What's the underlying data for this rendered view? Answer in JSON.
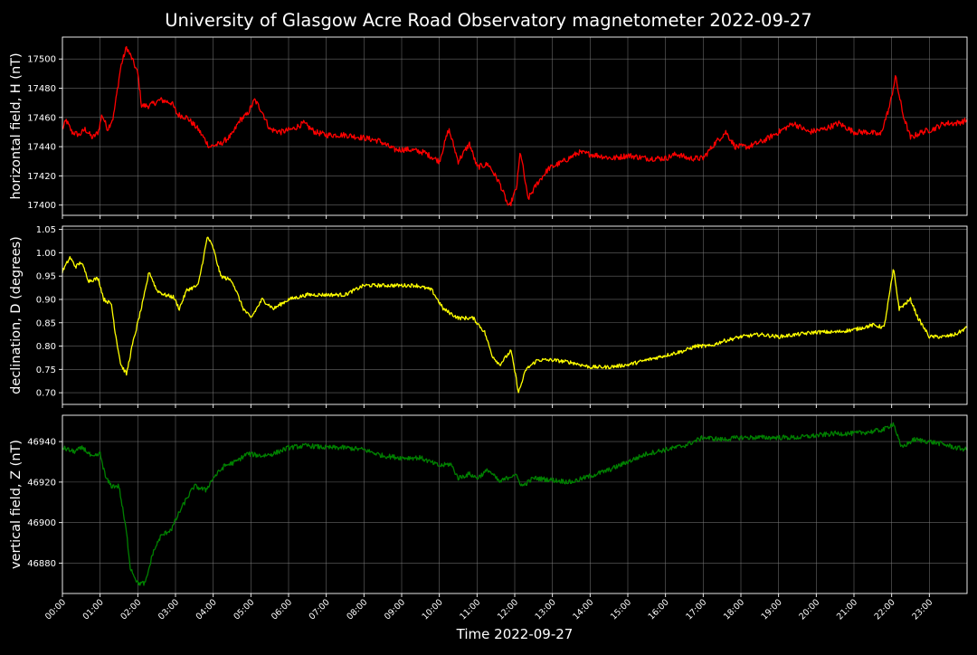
{
  "title": "University of Glasgow Acre Road Observatory magnetometer 2022-09-27",
  "xlabel": "Time 2022-09-27",
  "colors": {
    "background": "#000000",
    "axes": "#ffffff",
    "grid": "#808080"
  },
  "chart_data": [
    {
      "type": "line",
      "ylabel": "horizontal field, H (nT)",
      "color": "#ff0000",
      "xlim": [
        0,
        24
      ],
      "ylim": [
        17393,
        17515
      ],
      "yticks": [
        17400,
        17420,
        17440,
        17460,
        17480,
        17500
      ],
      "xticks": [
        "00:00",
        "01:00",
        "02:00",
        "03:00",
        "04:00",
        "05:00",
        "06:00",
        "07:00",
        "08:00",
        "09:00",
        "10:00",
        "11:00",
        "12:00",
        "13:00",
        "14:00",
        "15:00",
        "16:00",
        "17:00",
        "18:00",
        "19:00",
        "20:00",
        "21:00",
        "22:00",
        "23:00"
      ],
      "grid": true,
      "noise": 2,
      "series": [
        {
          "points": [
            [
              0,
              17452
            ],
            [
              0.1,
              17458
            ],
            [
              0.25,
              17450
            ],
            [
              0.45,
              17448
            ],
            [
              0.6,
              17452
            ],
            [
              0.8,
              17446
            ],
            [
              0.95,
              17450
            ],
            [
              1.05,
              17462
            ],
            [
              1.2,
              17452
            ],
            [
              1.35,
              17460
            ],
            [
              1.55,
              17495
            ],
            [
              1.7,
              17508
            ],
            [
              1.85,
              17500
            ],
            [
              2.0,
              17490
            ],
            [
              2.1,
              17468
            ],
            [
              2.3,
              17468
            ],
            [
              2.6,
              17472
            ],
            [
              2.9,
              17470
            ],
            [
              3.05,
              17462
            ],
            [
              3.3,
              17460
            ],
            [
              3.6,
              17452
            ],
            [
              3.9,
              17440
            ],
            [
              4.2,
              17442
            ],
            [
              4.5,
              17448
            ],
            [
              4.7,
              17458
            ],
            [
              4.9,
              17462
            ],
            [
              5.1,
              17472
            ],
            [
              5.3,
              17464
            ],
            [
              5.5,
              17452
            ],
            [
              5.8,
              17450
            ],
            [
              6.1,
              17452
            ],
            [
              6.4,
              17456
            ],
            [
              6.7,
              17450
            ],
            [
              7.0,
              17448
            ],
            [
              7.5,
              17448
            ],
            [
              8.0,
              17446
            ],
            [
              8.4,
              17444
            ],
            [
              8.8,
              17438
            ],
            [
              9.2,
              17438
            ],
            [
              9.6,
              17436
            ],
            [
              10.0,
              17430
            ],
            [
              10.25,
              17452
            ],
            [
              10.5,
              17430
            ],
            [
              10.8,
              17442
            ],
            [
              11.0,
              17426
            ],
            [
              11.3,
              17428
            ],
            [
              11.6,
              17415
            ],
            [
              11.85,
              17398
            ],
            [
              12.05,
              17412
            ],
            [
              12.15,
              17437
            ],
            [
              12.35,
              17404
            ],
            [
              12.6,
              17415
            ],
            [
              12.9,
              17425
            ],
            [
              13.3,
              17430
            ],
            [
              13.7,
              17436
            ],
            [
              14.2,
              17434
            ],
            [
              14.6,
              17432
            ],
            [
              15.0,
              17434
            ],
            [
              15.5,
              17432
            ],
            [
              16.0,
              17432
            ],
            [
              16.3,
              17435
            ],
            [
              16.6,
              17432
            ],
            [
              17.0,
              17432
            ],
            [
              17.3,
              17442
            ],
            [
              17.6,
              17450
            ],
            [
              17.85,
              17440
            ],
            [
              18.2,
              17440
            ],
            [
              18.6,
              17444
            ],
            [
              19.0,
              17450
            ],
            [
              19.4,
              17456
            ],
            [
              19.8,
              17450
            ],
            [
              20.2,
              17452
            ],
            [
              20.6,
              17456
            ],
            [
              21.0,
              17450
            ],
            [
              21.4,
              17450
            ],
            [
              21.7,
              17448
            ],
            [
              21.95,
              17468
            ],
            [
              22.1,
              17488
            ],
            [
              22.3,
              17462
            ],
            [
              22.5,
              17446
            ],
            [
              22.8,
              17450
            ],
            [
              23.1,
              17452
            ],
            [
              23.4,
              17456
            ],
            [
              23.7,
              17456
            ],
            [
              24.0,
              17458
            ]
          ]
        }
      ]
    },
    {
      "type": "line",
      "ylabel": "declination, D (degrees)",
      "color": "#ffff00",
      "xlim": [
        0,
        24
      ],
      "ylim": [
        0.675,
        1.057
      ],
      "yticks": [
        0.7,
        0.75,
        0.8,
        0.85,
        0.9,
        0.95,
        1.0,
        1.05
      ],
      "xticks": [
        "00:00",
        "01:00",
        "02:00",
        "03:00",
        "04:00",
        "05:00",
        "06:00",
        "07:00",
        "08:00",
        "09:00",
        "10:00",
        "11:00",
        "12:00",
        "13:00",
        "14:00",
        "15:00",
        "16:00",
        "17:00",
        "18:00",
        "19:00",
        "20:00",
        "21:00",
        "22:00",
        "23:00"
      ],
      "grid": true,
      "noise": 0.004,
      "series": [
        {
          "points": [
            [
              0,
              0.96
            ],
            [
              0.2,
              0.99
            ],
            [
              0.35,
              0.97
            ],
            [
              0.5,
              0.98
            ],
            [
              0.7,
              0.94
            ],
            [
              0.95,
              0.945
            ],
            [
              1.1,
              0.9
            ],
            [
              1.3,
              0.89
            ],
            [
              1.4,
              0.83
            ],
            [
              1.55,
              0.76
            ],
            [
              1.7,
              0.74
            ],
            [
              1.85,
              0.8
            ],
            [
              2.0,
              0.85
            ],
            [
              2.15,
              0.9
            ],
            [
              2.3,
              0.96
            ],
            [
              2.5,
              0.92
            ],
            [
              2.7,
              0.91
            ],
            [
              2.95,
              0.905
            ],
            [
              3.1,
              0.88
            ],
            [
              3.3,
              0.92
            ],
            [
              3.6,
              0.93
            ],
            [
              3.85,
              1.035
            ],
            [
              4.0,
              1.01
            ],
            [
              4.2,
              0.95
            ],
            [
              4.5,
              0.94
            ],
            [
              4.8,
              0.88
            ],
            [
              5.0,
              0.86
            ],
            [
              5.3,
              0.9
            ],
            [
              5.6,
              0.88
            ],
            [
              6.0,
              0.9
            ],
            [
              6.5,
              0.91
            ],
            [
              7.0,
              0.91
            ],
            [
              7.5,
              0.91
            ],
            [
              8.0,
              0.93
            ],
            [
              8.5,
              0.93
            ],
            [
              9.0,
              0.93
            ],
            [
              9.4,
              0.93
            ],
            [
              9.8,
              0.92
            ],
            [
              10.1,
              0.88
            ],
            [
              10.5,
              0.86
            ],
            [
              10.9,
              0.86
            ],
            [
              11.2,
              0.83
            ],
            [
              11.4,
              0.78
            ],
            [
              11.6,
              0.76
            ],
            [
              11.9,
              0.79
            ],
            [
              12.05,
              0.725
            ],
            [
              12.1,
              0.7
            ],
            [
              12.3,
              0.75
            ],
            [
              12.6,
              0.77
            ],
            [
              13.0,
              0.77
            ],
            [
              13.5,
              0.765
            ],
            [
              14.0,
              0.755
            ],
            [
              14.5,
              0.755
            ],
            [
              15.0,
              0.76
            ],
            [
              15.5,
              0.77
            ],
            [
              16.0,
              0.78
            ],
            [
              16.5,
              0.79
            ],
            [
              16.8,
              0.8
            ],
            [
              17.2,
              0.8
            ],
            [
              17.5,
              0.81
            ],
            [
              18.0,
              0.82
            ],
            [
              18.5,
              0.825
            ],
            [
              19.0,
              0.82
            ],
            [
              19.5,
              0.825
            ],
            [
              20.0,
              0.83
            ],
            [
              20.5,
              0.83
            ],
            [
              21.0,
              0.835
            ],
            [
              21.5,
              0.845
            ],
            [
              21.8,
              0.84
            ],
            [
              22.05,
              0.965
            ],
            [
              22.2,
              0.88
            ],
            [
              22.5,
              0.9
            ],
            [
              22.7,
              0.86
            ],
            [
              23.0,
              0.82
            ],
            [
              23.4,
              0.82
            ],
            [
              23.7,
              0.825
            ],
            [
              24.0,
              0.84
            ]
          ]
        }
      ]
    },
    {
      "type": "line",
      "ylabel": "vertical field, Z (nT)",
      "color": "#008000",
      "xlim": [
        0,
        24
      ],
      "ylim": [
        46865,
        46953
      ],
      "yticks": [
        46880,
        46900,
        46920,
        46940
      ],
      "xticks": [
        "00:00",
        "01:00",
        "02:00",
        "03:00",
        "04:00",
        "05:00",
        "06:00",
        "07:00",
        "08:00",
        "09:00",
        "10:00",
        "11:00",
        "12:00",
        "13:00",
        "14:00",
        "15:00",
        "16:00",
        "17:00",
        "18:00",
        "19:00",
        "20:00",
        "21:00",
        "22:00",
        "23:00"
      ],
      "grid": true,
      "noise": 1.2,
      "series": [
        {
          "points": [
            [
              0,
              46937
            ],
            [
              0.3,
              46935
            ],
            [
              0.55,
              46937
            ],
            [
              0.8,
              46932
            ],
            [
              1.0,
              46934
            ],
            [
              1.15,
              46922
            ],
            [
              1.3,
              46918
            ],
            [
              1.5,
              46918
            ],
            [
              1.7,
              46895
            ],
            [
              1.8,
              46878
            ],
            [
              2.0,
              46870
            ],
            [
              2.2,
              46870
            ],
            [
              2.4,
              46885
            ],
            [
              2.6,
              46893
            ],
            [
              2.9,
              46897
            ],
            [
              3.1,
              46905
            ],
            [
              3.3,
              46912
            ],
            [
              3.5,
              46918
            ],
            [
              3.8,
              46916
            ],
            [
              4.0,
              46922
            ],
            [
              4.3,
              46928
            ],
            [
              4.6,
              46930
            ],
            [
              4.9,
              46934
            ],
            [
              5.3,
              46933
            ],
            [
              5.6,
              46934
            ],
            [
              6.0,
              46937
            ],
            [
              6.5,
              46938
            ],
            [
              7.0,
              46937
            ],
            [
              7.5,
              46937
            ],
            [
              8.0,
              46936
            ],
            [
              8.5,
              46933
            ],
            [
              9.0,
              46932
            ],
            [
              9.5,
              46932
            ],
            [
              10.0,
              46928
            ],
            [
              10.3,
              46929
            ],
            [
              10.5,
              46922
            ],
            [
              10.8,
              46924
            ],
            [
              11.0,
              46922
            ],
            [
              11.3,
              46926
            ],
            [
              11.6,
              46920
            ],
            [
              12.0,
              46924
            ],
            [
              12.2,
              46918
            ],
            [
              12.5,
              46922
            ],
            [
              13.0,
              46921
            ],
            [
              13.5,
              46920
            ],
            [
              14.0,
              46923
            ],
            [
              14.5,
              46926
            ],
            [
              15.0,
              46930
            ],
            [
              15.5,
              46934
            ],
            [
              16.0,
              46936
            ],
            [
              16.5,
              46938
            ],
            [
              17.0,
              46942
            ],
            [
              17.5,
              46941
            ],
            [
              18.0,
              46942
            ],
            [
              18.5,
              46942
            ],
            [
              19.0,
              46942
            ],
            [
              19.5,
              46942
            ],
            [
              20.0,
              46943
            ],
            [
              20.5,
              46944
            ],
            [
              21.0,
              46944
            ],
            [
              21.5,
              46945
            ],
            [
              21.8,
              46946
            ],
            [
              22.05,
              46949
            ],
            [
              22.25,
              46937
            ],
            [
              22.6,
              46941
            ],
            [
              23.0,
              46940
            ],
            [
              23.3,
              46939
            ],
            [
              23.7,
              46937
            ],
            [
              24.0,
              46936
            ]
          ]
        }
      ]
    }
  ]
}
